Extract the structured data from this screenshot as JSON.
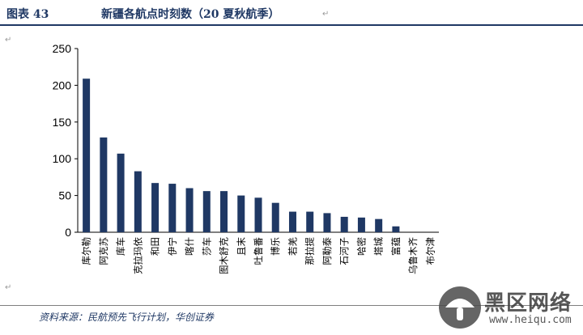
{
  "header": {
    "label": "图表 43",
    "title": "新疆各航点时刻数（20 夏秋航季）",
    "para_mark": "↵"
  },
  "chart_data": {
    "type": "bar",
    "categories": [
      "库尔勒",
      "阿克苏",
      "库车",
      "克拉玛依",
      "和田",
      "伊宁",
      "喀什",
      "莎车",
      "图木舒克",
      "且末",
      "吐鲁番",
      "博乐",
      "若羌",
      "那拉提",
      "阿勒泰",
      "石河子",
      "哈密",
      "塔城",
      "富蕴",
      "乌鲁木齐",
      "布尔津"
    ],
    "values": [
      209,
      129,
      107,
      83,
      67,
      66,
      60,
      56,
      56,
      50,
      47,
      40,
      28,
      28,
      26,
      21,
      20,
      18,
      8,
      0,
      0
    ],
    "ylim": [
      0,
      250
    ],
    "yticks": [
      0,
      50,
      100,
      150,
      200,
      250
    ],
    "bar_color": "#1f3864",
    "grid": false,
    "legend": "none"
  },
  "footer": {
    "source": "资料来源：民航预先飞行计划，华创证券"
  },
  "watermark": {
    "text": "黑区网络",
    "url": "www.heiqu.com"
  }
}
